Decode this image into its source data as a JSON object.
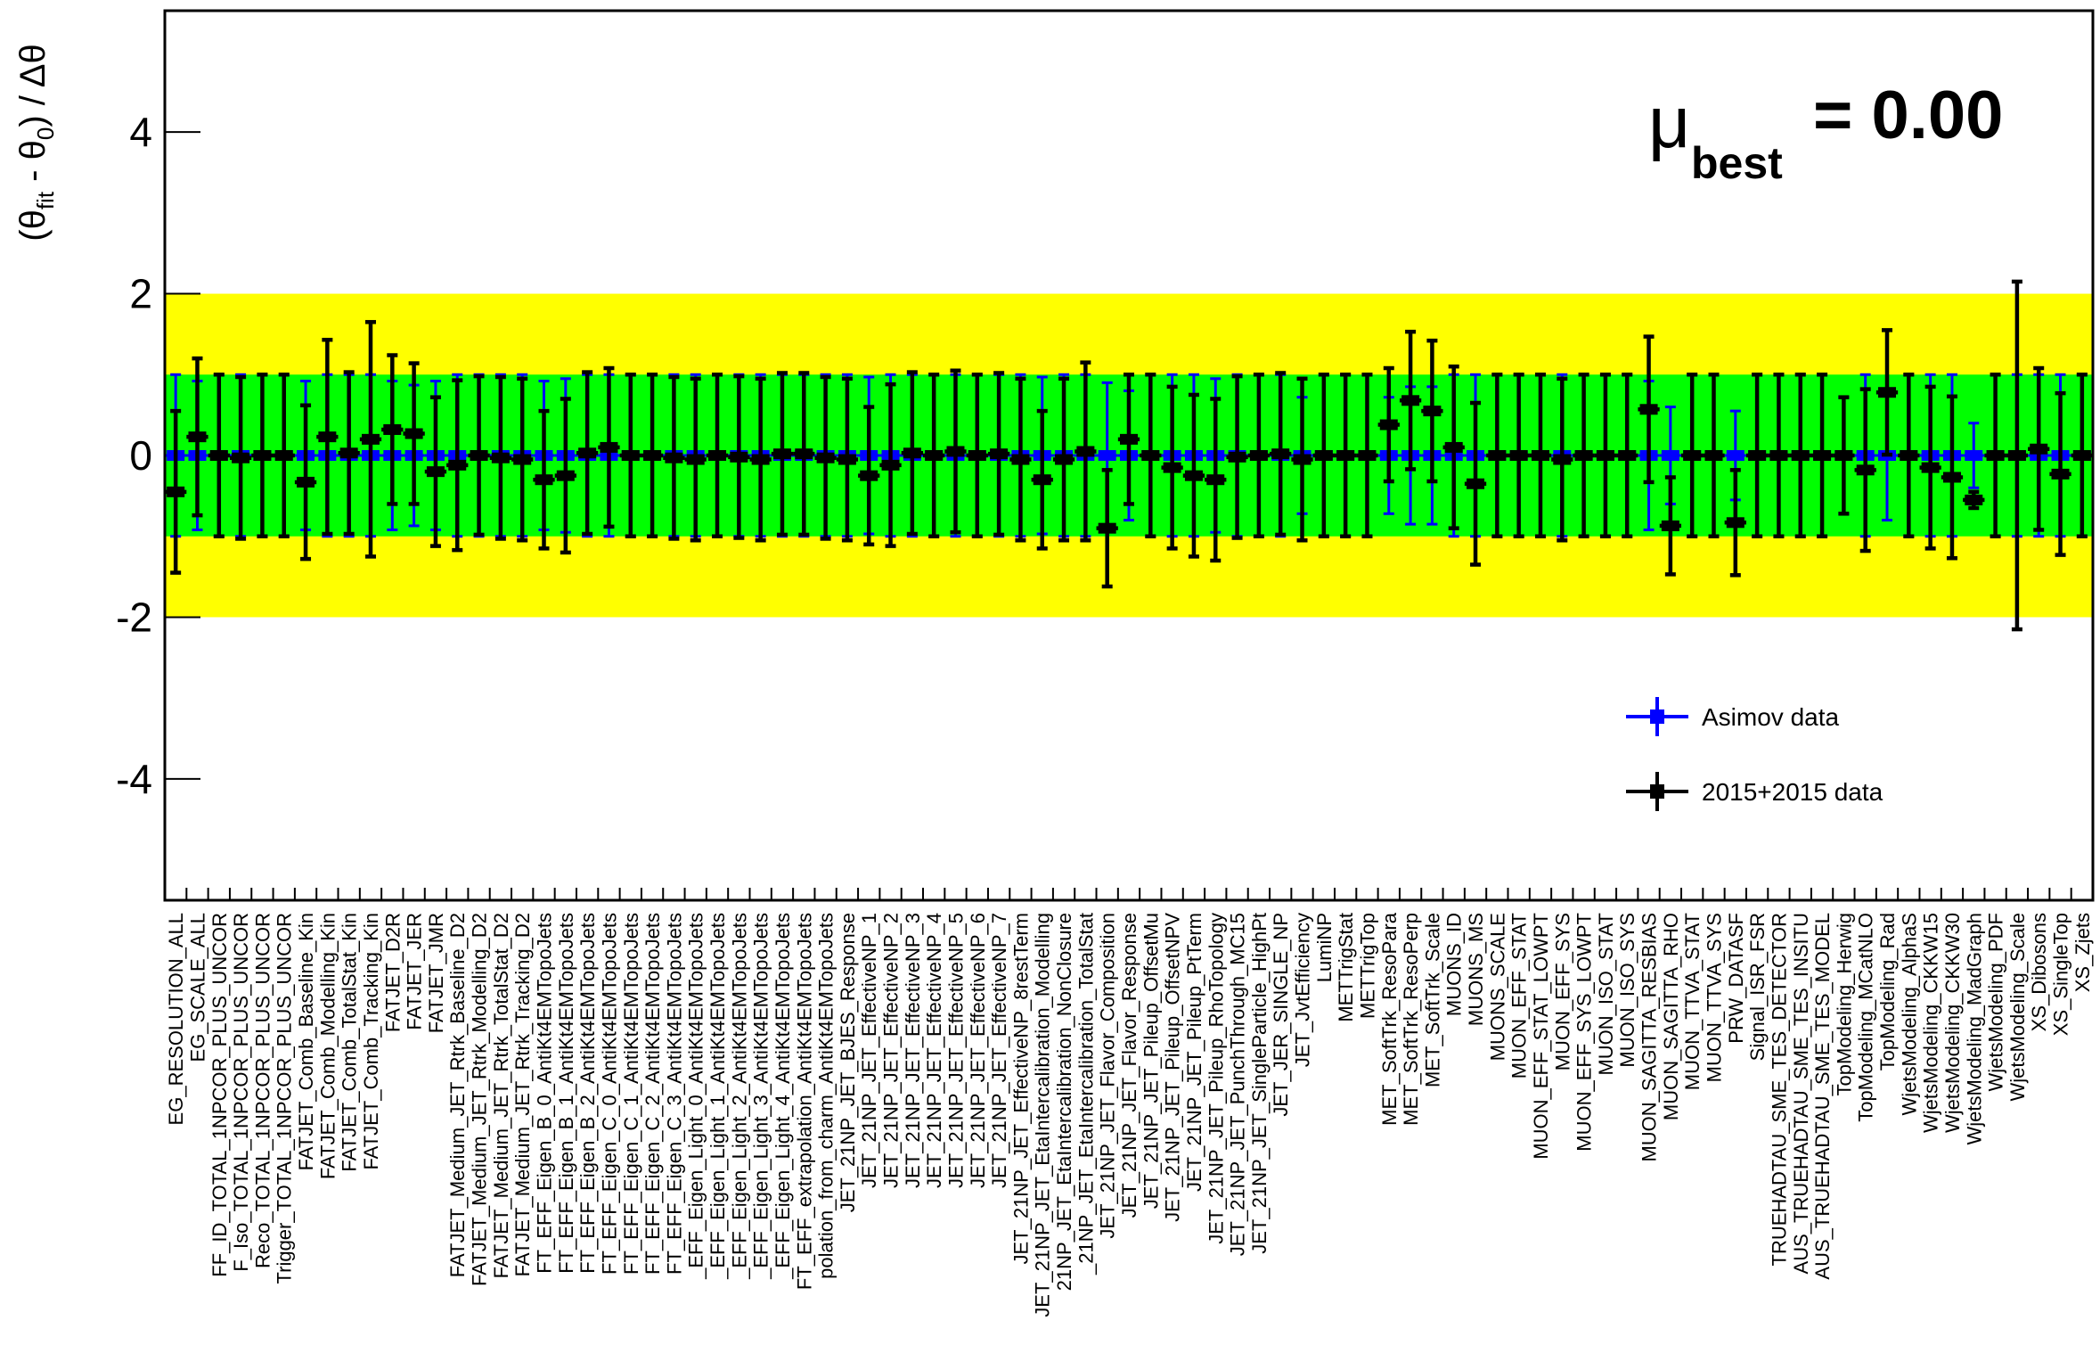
{
  "chart_data": {
    "type": "pull",
    "annotation": {
      "symbol": "μ",
      "subscript": "best",
      "text": "= 0.00"
    },
    "y_label": {
      "open": "(θ",
      "sub1": "fit",
      "mid": " - θ",
      "sub2": "0",
      "close": ") / Δθ"
    },
    "ylim": [
      -5.5,
      5.5
    ],
    "yticks": [
      -4,
      -2,
      0,
      2,
      4
    ],
    "bands": [
      {
        "lo": -2,
        "hi": 2,
        "color": "#ffff00"
      },
      {
        "lo": -1,
        "hi": 1,
        "color": "#00ff00"
      }
    ],
    "categories": [
      "EG_RESOLUTION_ALL",
      "EG_SCALE_ALL",
      "FF_ID_TOTAL_1NPCOR_PLUS_UNCOR",
      "F_Iso_TOTAL_1NPCOR_PLUS_UNCOR",
      "Reco_TOTAL_1NPCOR_PLUS_UNCOR",
      "Trigger_TOTAL_1NPCOR_PLUS_UNCOR",
      "FATJET_Comb_Baseline_Kin",
      "FATJET_Comb_Modelling_Kin",
      "FATJET_Comb_TotalStat_Kin",
      "FATJET_Comb_Tracking_Kin",
      "FATJET_D2R",
      "FATJET_JER",
      "FATJET_JMR",
      "FATJET_Medium_JET_Rtrk_Baseline_D2",
      "FATJET_Medium_JET_Rtrk_Modelling_D2",
      "FATJET_Medium_JET_Rtrk_TotalStat_D2",
      "FATJET_Medium_JET_Rtrk_Tracking_D2",
      "FT_EFF_Eigen_B_0_AntiKt4EMTopoJets",
      "FT_EFF_Eigen_B_1_AntiKt4EMTopoJets",
      "FT_EFF_Eigen_B_2_AntiKt4EMTopoJets",
      "FT_EFF_Eigen_C_0_AntiKt4EMTopoJets",
      "FT_EFF_Eigen_C_1_AntiKt4EMTopoJets",
      "FT_EFF_Eigen_C_2_AntiKt4EMTopoJets",
      "FT_EFF_Eigen_C_3_AntiKt4EMTopoJets",
      "_EFF_Eigen_Light_0_AntiKt4EMTopoJets",
      "_EFF_Eigen_Light_1_AntiKt4EMTopoJets",
      "_EFF_Eigen_Light_2_AntiKt4EMTopoJets",
      "_EFF_Eigen_Light_3_AntiKt4EMTopoJets",
      "_EFF_Eigen_Light_4_AntiKt4EMTopoJets",
      "FT_EFF_extrapolation_AntiKt4EMTopoJets",
      "polation_from_charm_AntiKt4EMTopoJets",
      "JET_21NP_JET_BJES_Response",
      "JET_21NP_JET_EffectiveNP_1",
      "JET_21NP_JET_EffectiveNP_2",
      "JET_21NP_JET_EffectiveNP_3",
      "JET_21NP_JET_EffectiveNP_4",
      "JET_21NP_JET_EffectiveNP_5",
      "JET_21NP_JET_EffectiveNP_6",
      "JET_21NP_JET_EffectiveNP_7",
      "JET_21NP_JET_EffectiveNP_8restTerm",
      "JET_21NP_JET_EtaIntercalibration_Modelling",
      "21NP_JET_EtaIntercalibration_NonClosure",
      "_21NP_JET_EtaIntercalibration_TotalStat",
      "JET_21NP_JET_Flavor_Composition",
      "JET_21NP_JET_Flavor_Response",
      "JET_21NP_JET_Pileup_OffsetMu",
      "JET_21NP_JET_Pileup_OffsetNPV",
      "JET_21NP_JET_Pileup_PtTerm",
      "JET_21NP_JET_Pileup_RhoTopology",
      "JET_21NP_JET_PunchThrough_MC15",
      "JET_21NP_JET_SingleParticle_HighPt",
      "JET_JER_SINGLE_NP",
      "JET_JvtEfficiency",
      "LumiNP",
      "METTrigStat",
      "METTrigTop",
      "MET_SoftTrk_ResoPara",
      "MET_SoftTrk_ResoPerp",
      "MET_SoftTrk_Scale",
      "MUONS_ID",
      "MUONS_MS",
      "MUONS_SCALE",
      "MUON_EFF_STAT",
      "MUON_EFF_STAT_LOWPT",
      "MUON_EFF_SYS",
      "MUON_EFF_SYS_LOWPT",
      "MUON_ISO_STAT",
      "MUON_ISO_SYS",
      "MUON_SAGITTA_RESBIAS",
      "MUON_SAGITTA_RHO",
      "MUON_TTVA_STAT",
      "MUON_TTVA_SYS",
      "PRW_DATASF",
      "Signal_ISR_FSR",
      "TRUEHADTAU_SME_TES_DETECTOR",
      "AUS_TRUEHADTAU_SME_TES_INSITU",
      "AUS_TRUEHADTAU_SME_TES_MODEL",
      "TopModeling_Herwig",
      "TopModeling_MCatNLO",
      "TopModeling_Rad",
      "WjetsModeling_AlphaS",
      "WjetsModeling_CKKW15",
      "WjetsModeling_CKKW30",
      "WjetsModeling_MadGraph",
      "WjetsModeling_PDF",
      "WjetsModeling_Scale",
      "XS_Dibosons",
      "XS_SingleTop",
      "XS_Zjets"
    ],
    "series": [
      {
        "name": "Asimov data",
        "color": "#0000ff",
        "values": [
          0,
          0,
          0,
          0,
          0,
          0,
          0,
          0,
          0,
          0,
          0,
          0,
          0,
          0,
          0,
          0,
          0,
          0,
          0,
          0,
          0,
          0,
          0,
          0,
          0,
          0,
          0,
          0,
          0,
          0,
          0,
          0,
          0,
          0,
          0,
          0,
          0,
          0,
          0,
          0,
          0,
          0,
          0,
          0,
          0,
          0,
          0,
          0,
          0,
          0,
          0,
          0,
          0,
          0,
          0,
          0,
          0,
          0,
          0,
          0,
          0,
          0,
          0,
          0,
          0,
          0,
          0,
          0,
          0,
          0,
          0,
          0,
          0,
          0,
          0,
          0,
          0,
          0,
          0,
          0,
          0,
          0,
          0,
          0,
          0,
          0,
          0,
          0,
          0
        ],
        "errors": [
          1,
          0.92,
          1,
          1,
          1,
          1,
          0.92,
          1,
          1,
          1,
          0.92,
          0.87,
          0.92,
          1,
          1,
          1,
          1,
          0.92,
          0.95,
          1,
          1,
          1,
          1,
          1,
          1,
          1,
          1,
          1,
          1,
          1,
          1,
          1,
          0.97,
          1,
          1,
          1,
          1,
          1,
          1,
          1,
          0.97,
          1,
          1,
          0.9,
          0.8,
          1,
          1,
          1,
          0.95,
          1,
          1,
          1,
          0.72,
          1,
          1,
          1,
          0.72,
          0.85,
          0.85,
          1,
          1,
          1,
          1,
          1,
          1,
          1,
          1,
          1,
          0.92,
          0.6,
          1,
          1,
          0.55,
          1,
          1,
          1,
          1,
          0.72,
          1,
          0.8,
          1,
          1,
          1,
          0.4,
          1,
          1,
          1,
          1,
          1
        ]
      },
      {
        "name": "2015+2015 data",
        "color": "#000000",
        "values": [
          -0.45,
          0.23,
          0,
          -0.03,
          0,
          0,
          -0.33,
          0.23,
          0.03,
          0.2,
          0.32,
          0.27,
          -0.2,
          -0.12,
          0,
          -0.03,
          -0.05,
          -0.3,
          -0.25,
          0.03,
          0.1,
          0,
          0,
          -0.03,
          -0.05,
          0,
          -0.02,
          -0.05,
          0.02,
          0.02,
          -0.03,
          -0.05,
          -0.25,
          -0.12,
          0.03,
          0,
          0.05,
          0,
          0.02,
          -0.05,
          -0.3,
          -0.05,
          0.05,
          -0.9,
          0.2,
          0,
          -0.15,
          -0.25,
          -0.3,
          -0.02,
          0,
          0.02,
          -0.05,
          0,
          0,
          0,
          0.38,
          0.68,
          0.55,
          0.1,
          -0.35,
          0,
          0,
          0,
          -0.05,
          0,
          0,
          0,
          0.57,
          -0.87,
          0,
          0,
          -0.83,
          0,
          0,
          0,
          0,
          0,
          -0.18,
          0.78,
          0,
          -0.15,
          -0.27,
          -0.55,
          0,
          0,
          0.08,
          -0.23,
          0
        ],
        "errors": [
          1,
          0.97,
          1,
          1,
          1,
          1,
          0.95,
          1.2,
          1,
          1.45,
          0.92,
          0.87,
          0.92,
          1.05,
          0.98,
          1,
          1,
          0.85,
          0.95,
          1,
          0.98,
          1,
          1,
          1,
          1,
          1,
          1,
          1,
          1,
          1,
          1,
          1,
          0.85,
          1,
          1,
          1,
          1,
          1,
          1,
          1,
          0.85,
          1,
          1.1,
          0.72,
          0.8,
          1,
          1,
          1,
          1,
          1,
          1,
          1,
          1,
          1,
          1,
          1,
          0.7,
          0.85,
          0.87,
          1,
          1,
          1,
          1,
          1,
          1,
          1,
          1,
          1,
          0.9,
          0.6,
          1,
          1,
          0.65,
          1,
          1,
          1,
          1,
          0.72,
          1,
          0.77,
          1,
          1,
          1,
          0.1,
          1,
          2.15,
          1,
          1,
          1
        ]
      }
    ],
    "legend": "lower right"
  }
}
